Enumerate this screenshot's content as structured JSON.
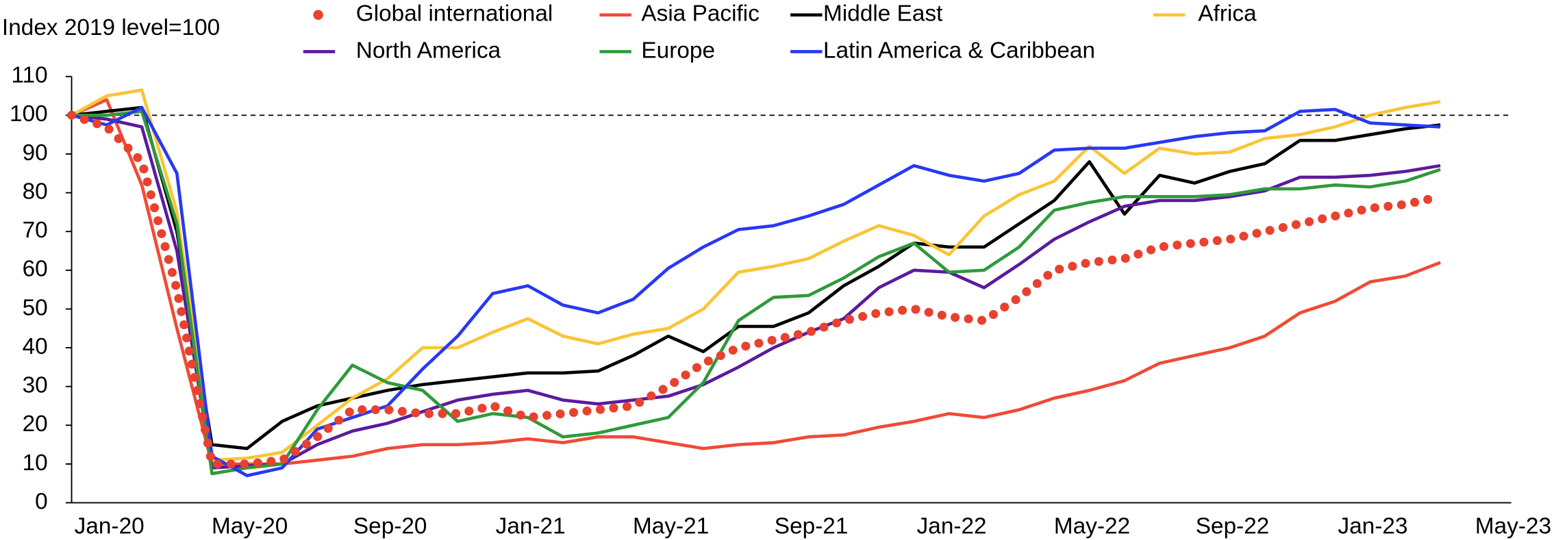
{
  "chart_data": {
    "type": "line",
    "y_axis_label": "Index 2019 level=100",
    "categories": [
      "Jan-20",
      null,
      null,
      null,
      "May-20",
      null,
      null,
      null,
      "Sep-20",
      null,
      null,
      null,
      "Jan-21",
      null,
      null,
      null,
      "May-21",
      null,
      null,
      null,
      "Sep-21",
      null,
      null,
      null,
      "Jan-22",
      null,
      null,
      null,
      "May-22",
      null,
      null,
      null,
      "Sep-22",
      null,
      null,
      null,
      "Jan-23",
      null,
      null,
      null,
      "May-23"
    ],
    "ylim": [
      0,
      110
    ],
    "yticks": [
      0,
      10,
      20,
      30,
      40,
      50,
      60,
      70,
      80,
      90,
      100,
      110
    ],
    "reference_line": 100,
    "grid": false,
    "series": [
      {
        "name": "Global international",
        "color": "#e8412f",
        "style": "dotted",
        "values": [
          100,
          97,
          88,
          55,
          10,
          10,
          11,
          17,
          24,
          24,
          23,
          23,
          25,
          22,
          23,
          24,
          25,
          30,
          36,
          40,
          42,
          44,
          47,
          49,
          50,
          48,
          47,
          53,
          60,
          62,
          63,
          66,
          67,
          68,
          70,
          72,
          74,
          76,
          77,
          79,
          null
        ]
      },
      {
        "name": "Asia Pacific",
        "color": "#f04a36",
        "values": [
          100,
          104,
          82,
          45,
          10,
          10,
          10,
          11,
          12,
          14,
          15,
          15,
          15.5,
          16.5,
          15.5,
          17,
          17,
          15.5,
          14,
          15,
          15.5,
          17,
          17.5,
          19.5,
          21,
          23,
          22,
          24,
          27,
          29,
          31.5,
          36,
          38,
          40,
          43,
          49,
          52,
          57,
          58.5,
          62,
          null
        ]
      },
      {
        "name": "Middle East",
        "color": "#000000",
        "values": [
          100,
          101,
          102,
          70,
          15,
          14,
          21,
          25,
          27,
          29,
          30.5,
          31.5,
          32.5,
          33.5,
          33.5,
          34,
          38,
          43,
          39,
          45.5,
          45.5,
          49,
          56,
          61,
          67,
          66,
          66,
          72,
          78,
          88,
          74.5,
          84.5,
          82.5,
          85.5,
          87.5,
          93.5,
          93.5,
          95,
          96.5,
          97.5,
          null
        ]
      },
      {
        "name": "Africa",
        "color": "#f9c536",
        "values": [
          100,
          105,
          106.5,
          75,
          11,
          11.5,
          13,
          20,
          27,
          32,
          40,
          40,
          44,
          47.5,
          43,
          41,
          43.5,
          45,
          50,
          59.5,
          61,
          63,
          67.5,
          71.5,
          69,
          64,
          74,
          79.5,
          83,
          92,
          85,
          91.5,
          90,
          90.5,
          94,
          95,
          97,
          100,
          102,
          103.5,
          null
        ]
      },
      {
        "name": "North America",
        "color": "#5b1a9e",
        "values": [
          100,
          99,
          97,
          65,
          9,
          9.5,
          10,
          15,
          18.5,
          20.5,
          23.5,
          26.5,
          28,
          29,
          26.5,
          25.5,
          26.5,
          27.5,
          30.5,
          35,
          40,
          44,
          47.5,
          55.5,
          60,
          59.5,
          55.5,
          61.5,
          68,
          72.5,
          76.5,
          78,
          78,
          79,
          80.5,
          84,
          84,
          84.5,
          85.5,
          87,
          null
        ]
      },
      {
        "name": "Europe",
        "color": "#2e9a3a",
        "values": [
          100,
          100,
          101,
          72,
          7.5,
          9,
          10,
          24,
          35.5,
          31,
          29,
          21,
          23,
          22,
          17,
          18,
          20,
          22,
          31,
          47,
          53,
          53.5,
          58,
          63.5,
          67,
          59.5,
          60,
          66,
          75.5,
          77.5,
          79,
          79,
          79,
          79.5,
          81,
          81,
          82,
          81.5,
          83,
          86,
          null
        ]
      },
      {
        "name": "Latin America & Caribbean",
        "color": "#2639f5",
        "values": [
          100,
          97.5,
          102,
          85,
          12,
          7,
          9,
          19,
          22,
          25,
          34.5,
          43,
          54,
          56,
          51,
          49,
          52.5,
          60.5,
          66,
          70.5,
          71.5,
          74,
          77,
          82,
          87,
          84.5,
          83,
          85,
          91,
          91.5,
          91.5,
          93,
          94.5,
          95.5,
          96,
          101,
          101.5,
          98,
          97.5,
          97,
          null
        ]
      }
    ]
  }
}
